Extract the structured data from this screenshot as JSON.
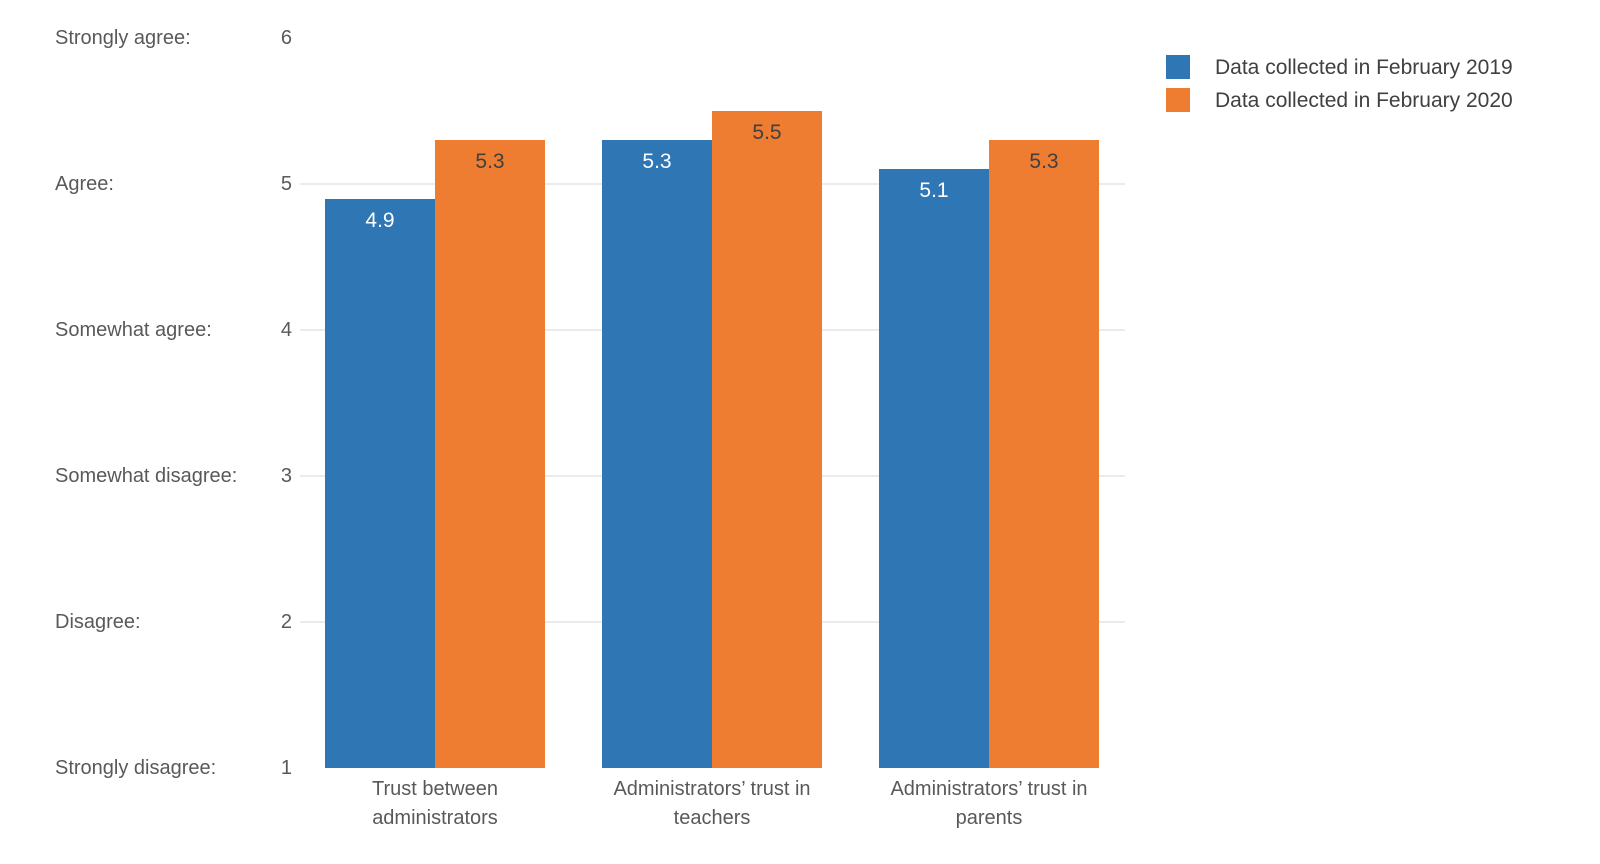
{
  "chart_data": {
    "type": "bar",
    "title": "",
    "categories": [
      "Trust between\nadministrators",
      "Administrators’ trust in\nteachers",
      "Administrators’ trust in\nparents"
    ],
    "series": [
      {
        "name": "Data collected in February 2019",
        "color": "#2e76b4",
        "label_color": "#ffffff",
        "values": [
          4.9,
          5.3,
          5.1
        ]
      },
      {
        "name": "Data collected in February 2020",
        "color": "#ee7d31",
        "label_color": "#404040",
        "values": [
          5.3,
          5.5,
          5.3
        ]
      }
    ],
    "value_axis": {
      "min": 1,
      "max": 6,
      "ticks": [
        {
          "value": 6,
          "label": "Strongly agree:",
          "number": "6"
        },
        {
          "value": 5,
          "label": "Agree:",
          "number": "5"
        },
        {
          "value": 4,
          "label": "Somewhat agree:",
          "number": "4"
        },
        {
          "value": 3,
          "label": "Somewhat disagree:",
          "number": "3"
        },
        {
          "value": 2,
          "label": "Disagree:",
          "number": "2"
        },
        {
          "value": 1,
          "label": "Strongly disagree:",
          "number": "1"
        }
      ],
      "gridline_values": [
        5,
        4,
        3,
        2
      ]
    },
    "grid": true,
    "legend_position": "top-right",
    "colors": {
      "background": "#ffffff",
      "gridline": "#ebebeb",
      "axis_text": "#595959",
      "legend_text": "#404040"
    }
  }
}
